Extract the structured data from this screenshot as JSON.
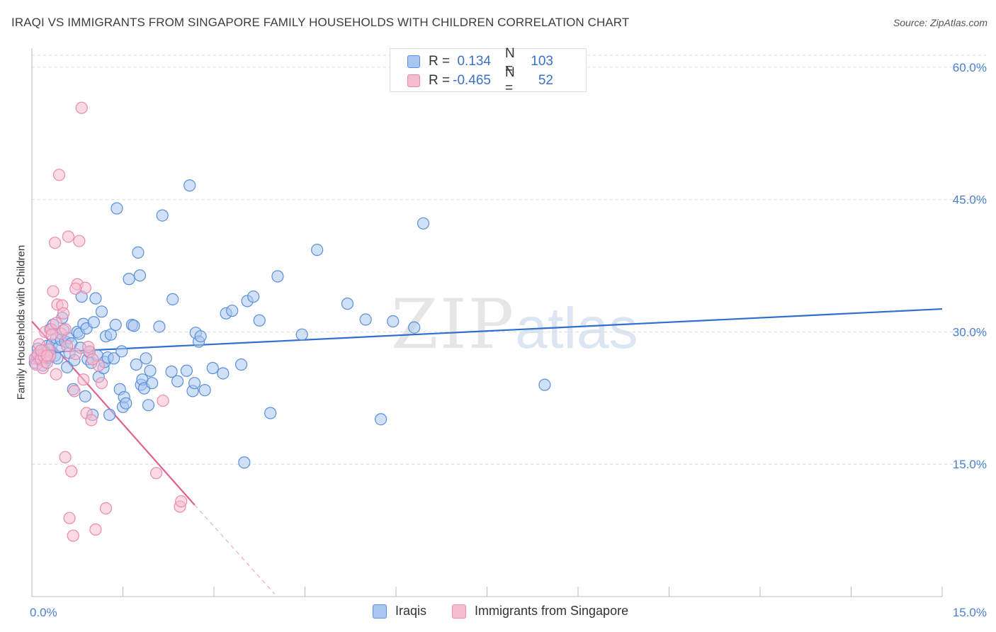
{
  "chart_data": {
    "type": "scatter",
    "title": "IRAQI VS IMMIGRANTS FROM SINGAPORE FAMILY HOUSEHOLDS WITH CHILDREN CORRELATION CHART",
    "source": "Source: ZipAtlas.com",
    "xlabel": "",
    "ylabel": "Family Households with Children",
    "xlim": [
      0,
      15
    ],
    "ylim": [
      0,
      62
    ],
    "x_tick_labels": [
      "0.0%",
      "15.0%"
    ],
    "y_ticks": [
      15,
      30,
      45,
      60
    ],
    "y_tick_labels": [
      "15.0%",
      "30.0%",
      "45.0%",
      "60.0%"
    ],
    "grid": true,
    "legend_placement": "top-center",
    "legend_stats": [
      {
        "label_r": "R =",
        "r": "0.134",
        "label_n": "N =",
        "n": "103",
        "color": "#6f9fe0"
      },
      {
        "label_r": "R =",
        "r": "-0.465",
        "label_n": "N =",
        "n": "52",
        "color": "#ee8fb0"
      }
    ],
    "series": [
      {
        "name": "Iraqis",
        "fill": "#a9c6f0",
        "stroke": "#5b8fd8",
        "trend_color": "#2f6fcf",
        "trend": {
          "x0": 0,
          "y0": 27.6,
          "x1": 15,
          "y1": 32.6
        },
        "points": [
          [
            0.05,
            26.5
          ],
          [
            0.08,
            27.2
          ],
          [
            0.1,
            28.1
          ],
          [
            0.12,
            26.9
          ],
          [
            0.15,
            27.5
          ],
          [
            0.18,
            26.2
          ],
          [
            0.2,
            27.9
          ],
          [
            0.22,
            26.6
          ],
          [
            0.25,
            28.4
          ],
          [
            0.28,
            27.1
          ],
          [
            0.3,
            30.3
          ],
          [
            0.33,
            28.6
          ],
          [
            0.35,
            30.8
          ],
          [
            0.38,
            27.3
          ],
          [
            0.4,
            29.3
          ],
          [
            0.42,
            27.0
          ],
          [
            0.45,
            28.3
          ],
          [
            0.48,
            29.1
          ],
          [
            0.5,
            31.6
          ],
          [
            0.52,
            30.2
          ],
          [
            0.55,
            28.9
          ],
          [
            0.58,
            26.0
          ],
          [
            0.6,
            29.3
          ],
          [
            0.62,
            27.6
          ],
          [
            0.65,
            28.7
          ],
          [
            0.68,
            23.5
          ],
          [
            0.7,
            26.8
          ],
          [
            0.75,
            30.0
          ],
          [
            0.78,
            29.8
          ],
          [
            0.8,
            28.2
          ],
          [
            0.82,
            34.0
          ],
          [
            0.85,
            30.9
          ],
          [
            0.88,
            22.7
          ],
          [
            0.9,
            30.4
          ],
          [
            0.92,
            26.9
          ],
          [
            0.95,
            27.7
          ],
          [
            0.98,
            26.5
          ],
          [
            1.0,
            20.6
          ],
          [
            1.02,
            31.1
          ],
          [
            1.05,
            33.8
          ],
          [
            1.08,
            27.3
          ],
          [
            1.1,
            24.9
          ],
          [
            1.15,
            32.3
          ],
          [
            1.18,
            25.9
          ],
          [
            1.2,
            26.6
          ],
          [
            1.22,
            29.5
          ],
          [
            1.25,
            27.1
          ],
          [
            1.28,
            20.6
          ],
          [
            1.3,
            29.7
          ],
          [
            1.35,
            27.0
          ],
          [
            1.38,
            30.8
          ],
          [
            1.4,
            44.0
          ],
          [
            1.45,
            23.5
          ],
          [
            1.48,
            27.8
          ],
          [
            1.5,
            21.5
          ],
          [
            1.52,
            22.6
          ],
          [
            1.55,
            21.9
          ],
          [
            1.6,
            36.0
          ],
          [
            1.65,
            30.8
          ],
          [
            1.68,
            30.7
          ],
          [
            1.72,
            26.3
          ],
          [
            1.75,
            39.0
          ],
          [
            1.78,
            36.4
          ],
          [
            1.8,
            24.0
          ],
          [
            1.82,
            24.6
          ],
          [
            1.85,
            23.6
          ],
          [
            1.88,
            27.0
          ],
          [
            1.92,
            21.7
          ],
          [
            1.95,
            25.6
          ],
          [
            1.98,
            24.2
          ],
          [
            2.1,
            30.6
          ],
          [
            2.15,
            43.2
          ],
          [
            2.3,
            25.5
          ],
          [
            2.32,
            33.7
          ],
          [
            2.4,
            24.4
          ],
          [
            2.55,
            25.6
          ],
          [
            2.6,
            46.6
          ],
          [
            2.65,
            23.3
          ],
          [
            2.68,
            24.2
          ],
          [
            2.7,
            29.9
          ],
          [
            2.75,
            28.9
          ],
          [
            2.78,
            29.5
          ],
          [
            2.85,
            23.4
          ],
          [
            2.98,
            25.9
          ],
          [
            3.15,
            25.3
          ],
          [
            3.2,
            32.1
          ],
          [
            3.3,
            32.4
          ],
          [
            3.45,
            26.3
          ],
          [
            3.5,
            15.2
          ],
          [
            3.55,
            33.5
          ],
          [
            3.65,
            34.0
          ],
          [
            3.75,
            31.3
          ],
          [
            3.93,
            20.8
          ],
          [
            4.05,
            36.3
          ],
          [
            4.45,
            29.7
          ],
          [
            4.7,
            39.3
          ],
          [
            5.2,
            33.2
          ],
          [
            5.5,
            31.4
          ],
          [
            5.75,
            20.1
          ],
          [
            5.95,
            31.2
          ],
          [
            6.3,
            30.5
          ],
          [
            6.45,
            42.3
          ],
          [
            8.45,
            24.0
          ]
        ]
      },
      {
        "name": "Immigrants from Singapore",
        "fill": "#f6bcd0",
        "stroke": "#ea8aac",
        "trend_color": "#e0608f",
        "trend": {
          "x0": 0,
          "y0": 31.2,
          "x1": 2.68,
          "y1": 10.4
        },
        "trend_dashed": {
          "x0": 2.68,
          "y0": 10.4,
          "x1": 4.0,
          "y1": 0.3
        },
        "points": [
          [
            0.05,
            27.0
          ],
          [
            0.07,
            26.3
          ],
          [
            0.1,
            27.5
          ],
          [
            0.12,
            28.6
          ],
          [
            0.15,
            26.9
          ],
          [
            0.18,
            25.9
          ],
          [
            0.2,
            27.2
          ],
          [
            0.22,
            30.0
          ],
          [
            0.25,
            26.5
          ],
          [
            0.28,
            28.0
          ],
          [
            0.3,
            27.3
          ],
          [
            0.32,
            30.3
          ],
          [
            0.35,
            34.6
          ],
          [
            0.38,
            40.1
          ],
          [
            0.4,
            25.2
          ],
          [
            0.42,
            33.1
          ],
          [
            0.45,
            47.8
          ],
          [
            0.48,
            29.8
          ],
          [
            0.5,
            33.0
          ],
          [
            0.52,
            32.1
          ],
          [
            0.55,
            15.8
          ],
          [
            0.58,
            28.4
          ],
          [
            0.6,
            40.8
          ],
          [
            0.62,
            8.9
          ],
          [
            0.65,
            14.2
          ],
          [
            0.68,
            6.9
          ],
          [
            0.7,
            23.3
          ],
          [
            0.72,
            27.5
          ],
          [
            0.75,
            35.4
          ],
          [
            0.78,
            40.3
          ],
          [
            0.82,
            55.4
          ],
          [
            0.85,
            24.6
          ],
          [
            0.88,
            35.0
          ],
          [
            0.9,
            20.8
          ],
          [
            0.95,
            27.8
          ],
          [
            0.98,
            20.0
          ],
          [
            1.05,
            7.6
          ],
          [
            1.1,
            26.2
          ],
          [
            1.15,
            24.2
          ],
          [
            1.22,
            10.0
          ],
          [
            2.05,
            14.0
          ],
          [
            2.16,
            22.2
          ],
          [
            2.44,
            10.2
          ],
          [
            2.46,
            10.8
          ],
          [
            0.15,
            27.9
          ],
          [
            0.25,
            27.3
          ],
          [
            0.33,
            29.7
          ],
          [
            0.4,
            31.0
          ],
          [
            0.55,
            30.3
          ],
          [
            0.72,
            34.9
          ],
          [
            0.93,
            28.3
          ],
          [
            1.0,
            26.9
          ]
        ]
      }
    ]
  },
  "watermark": {
    "zip": "ZIP",
    "atlas": "atlas"
  }
}
